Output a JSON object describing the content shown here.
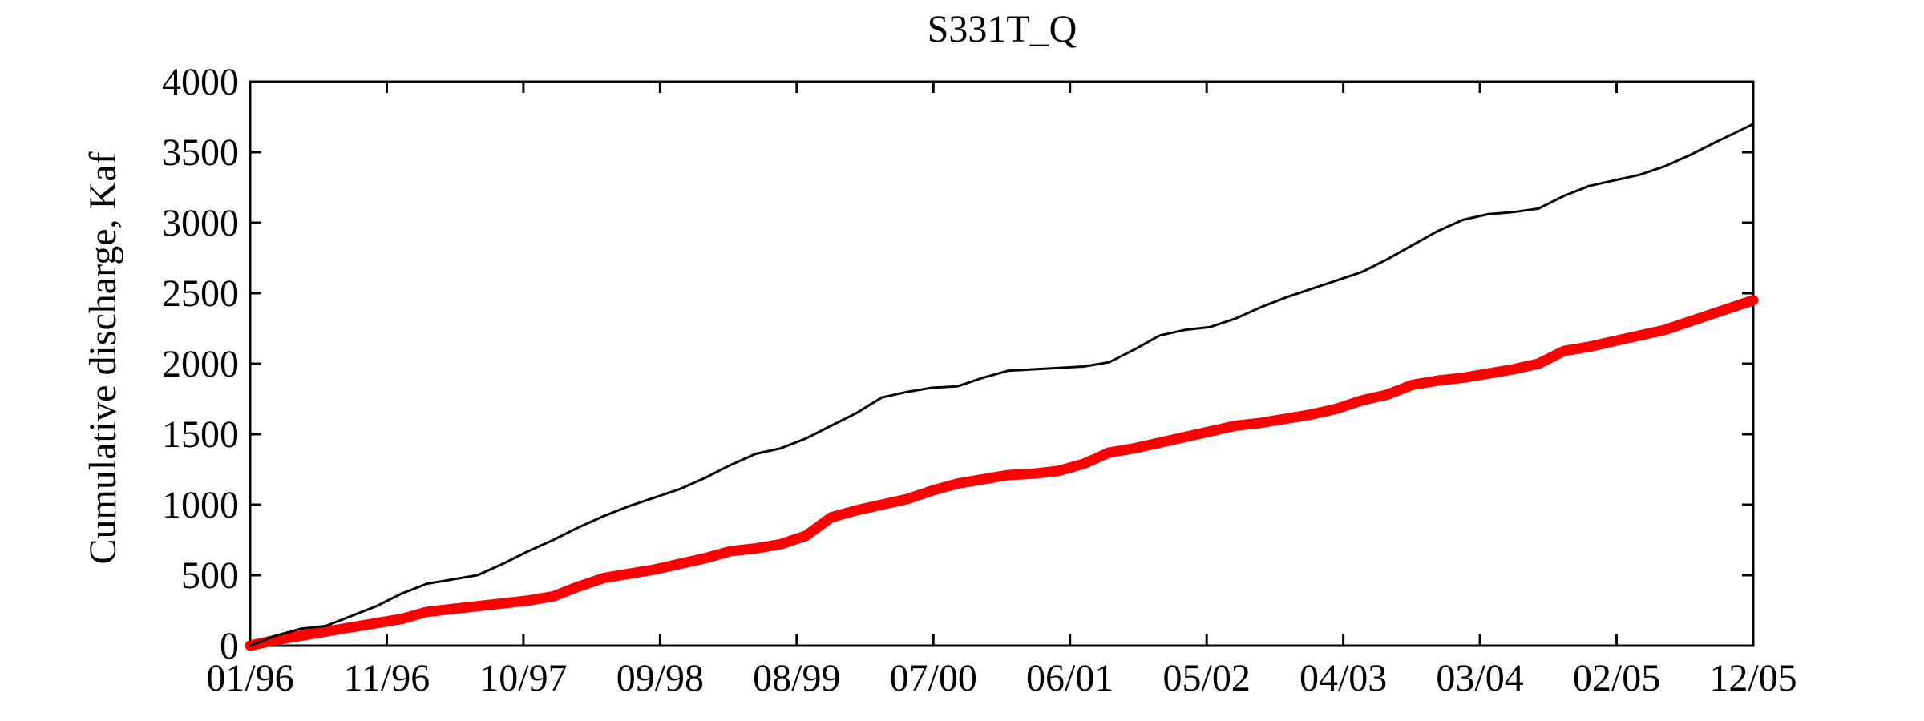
{
  "chart_data": {
    "type": "line",
    "title": "S331T_Q",
    "xlabel": "",
    "ylabel": "Cumulative discharge, Kaf",
    "ylim": [
      0,
      4000
    ],
    "yticks": [
      0,
      500,
      1000,
      1500,
      2000,
      2500,
      3000,
      3500,
      4000
    ],
    "xlim": [
      "1996-01",
      "2005-12"
    ],
    "xtick_labels": [
      "01/96",
      "11/96",
      "10/97",
      "09/98",
      "08/99",
      "07/00",
      "06/01",
      "05/02",
      "04/03",
      "03/04",
      "02/05",
      "12/05"
    ],
    "grid": false,
    "legend": null,
    "x": [
      "1996-01",
      "1996-03",
      "1996-05",
      "1996-07",
      "1996-09",
      "1996-11",
      "1997-01",
      "1997-03",
      "1997-05",
      "1997-07",
      "1997-09",
      "1997-11",
      "1998-01",
      "1998-03",
      "1998-05",
      "1998-07",
      "1998-09",
      "1998-11",
      "1999-01",
      "1999-03",
      "1999-05",
      "1999-07",
      "1999-09",
      "1999-11",
      "2000-01",
      "2000-03",
      "2000-05",
      "2000-07",
      "2000-09",
      "2000-11",
      "2001-01",
      "2001-03",
      "2001-05",
      "2001-07",
      "2001-09",
      "2001-11",
      "2002-01",
      "2002-03",
      "2002-05",
      "2002-07",
      "2002-09",
      "2002-11",
      "2003-01",
      "2003-03",
      "2003-05",
      "2003-07",
      "2003-09",
      "2003-11",
      "2004-01",
      "2004-03",
      "2004-05",
      "2004-07",
      "2004-09",
      "2004-11",
      "2005-01",
      "2005-03",
      "2005-05",
      "2005-07",
      "2005-09",
      "2005-12"
    ],
    "series": [
      {
        "color": "#000000",
        "line_width": "thin",
        "values": [
          0,
          70,
          120,
          140,
          210,
          280,
          370,
          440,
          470,
          500,
          580,
          670,
          750,
          840,
          920,
          990,
          1050,
          1110,
          1190,
          1280,
          1360,
          1400,
          1470,
          1560,
          1650,
          1760,
          1800,
          1830,
          1840,
          1900,
          1950,
          1960,
          1970,
          1980,
          2010,
          2100,
          2200,
          2240,
          2260,
          2320,
          2400,
          2470,
          2530,
          2590,
          2650,
          2740,
          2840,
          2940,
          3020,
          3060,
          3075,
          3100,
          3190,
          3260,
          3300,
          3340,
          3400,
          3480,
          3570,
          3700
        ]
      },
      {
        "color": "#ff0000",
        "line_width": "thick",
        "values": [
          0,
          40,
          70,
          100,
          130,
          160,
          190,
          240,
          260,
          280,
          300,
          320,
          350,
          420,
          480,
          510,
          540,
          580,
          620,
          670,
          690,
          720,
          780,
          910,
          960,
          1000,
          1040,
          1100,
          1150,
          1180,
          1210,
          1220,
          1240,
          1290,
          1370,
          1400,
          1440,
          1480,
          1520,
          1560,
          1580,
          1610,
          1640,
          1680,
          1740,
          1780,
          1850,
          1880,
          1900,
          1930,
          1960,
          2000,
          2090,
          2120,
          2160,
          2200,
          2240,
          2300,
          2360,
          2450
        ]
      }
    ]
  }
}
